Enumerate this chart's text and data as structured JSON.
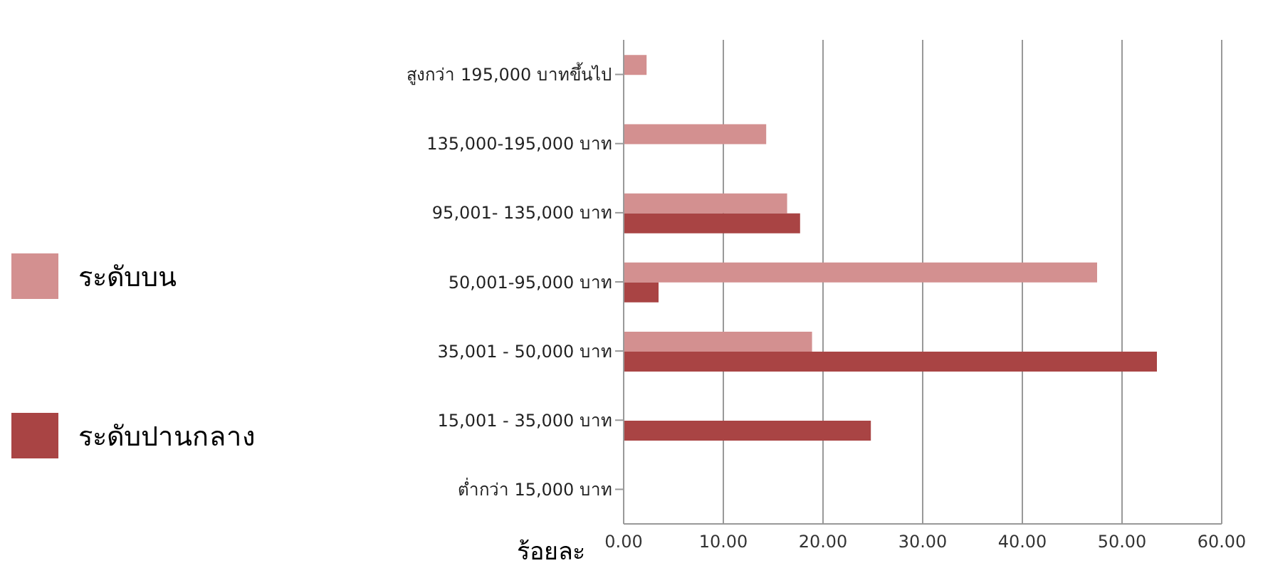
{
  "chart_data": {
    "type": "bar",
    "orientation": "horizontal",
    "xlabel": "ร้อยละ",
    "categories": [
      "สูงกว่า 195,000 บาทขึ้นไป",
      "135,000-195,000  บาท",
      "95,001-  135,000  บาท",
      "50,001-95,000 บาท",
      "35,001 - 50,000   บาท",
      "15,001 - 35,000 บาท",
      "ต่ำกว่า 15,000   บาท"
    ],
    "series": [
      {
        "name": "ระดับบน",
        "color": "#d39090",
        "values": [
          2.3,
          14.3,
          16.4,
          47.5,
          18.9,
          null,
          null
        ]
      },
      {
        "name": "ระดับปานกลาง",
        "color": "#a94444",
        "values": [
          null,
          null,
          17.7,
          3.5,
          53.5,
          24.8,
          null
        ]
      }
    ],
    "xlim": [
      0,
      60
    ],
    "xticks": [
      {
        "value": 0,
        "label": "0.00"
      },
      {
        "value": 10,
        "label": "10.00"
      },
      {
        "value": 20,
        "label": "20.00"
      },
      {
        "value": 30,
        "label": "30.00"
      },
      {
        "value": 40,
        "label": "40.00"
      },
      {
        "value": 50,
        "label": "50.00"
      },
      {
        "value": 60,
        "label": "60.00"
      }
    ],
    "grid": "x",
    "legend": "left"
  }
}
